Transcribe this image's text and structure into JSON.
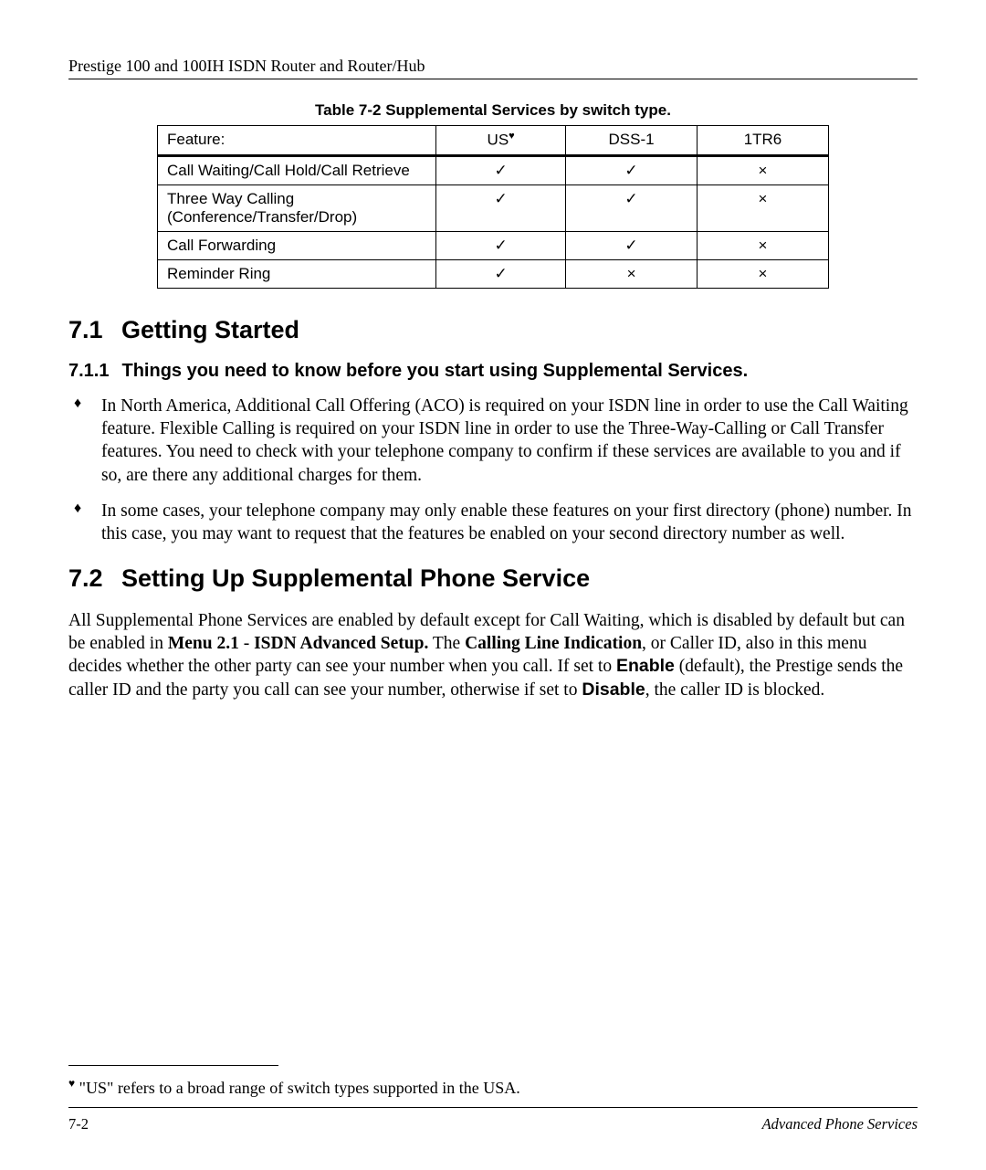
{
  "header": {
    "title": "Prestige 100 and 100IH ISDN Router and Router/Hub"
  },
  "table": {
    "caption": "Table 7-2 Supplemental Services by switch type.",
    "columns": {
      "feature": "Feature:",
      "us": "US",
      "us_marker": "♥",
      "dss1": "DSS-1",
      "tr6": "1TR6"
    },
    "rows": [
      {
        "feature": "Call Waiting/Call Hold/Call Retrieve",
        "us": "✓",
        "dss1": "✓",
        "tr6": "×"
      },
      {
        "feature": "Three Way Calling (Conference/Transfer/Drop)",
        "us": "✓",
        "dss1": "✓",
        "tr6": "×"
      },
      {
        "feature": "Call Forwarding",
        "us": "✓",
        "dss1": "✓",
        "tr6": "×"
      },
      {
        "feature": "Reminder Ring",
        "us": "✓",
        "dss1": "×",
        "tr6": "×"
      }
    ]
  },
  "section71": {
    "num": "7.1",
    "title": "Getting Started"
  },
  "section711": {
    "num": "7.1.1",
    "title": "Things you need to know before you start using Supplemental Services."
  },
  "bullets": [
    "In North America, Additional Call Offering (ACO) is required on your ISDN line in order to use the Call Waiting feature. Flexible Calling is required on your ISDN line in order to use the Three-Way-Calling or Call Transfer features. You need to check with your telephone company to confirm if these services are available to you and if so, are there any additional charges for them.",
    "In some cases, your telephone company may only enable these features on your first directory (phone) number. In this case, you may want to request that the features be enabled on your second directory number as well."
  ],
  "section72": {
    "num": "7.2",
    "title": "Setting Up Supplemental Phone Service"
  },
  "body72": {
    "pre": "All Supplemental Phone Services are enabled by default except for Call Waiting, which is disabled by default but can be enabled in ",
    "menu": "Menu 2.1",
    "dash": " - ",
    "isdn": "ISDN Advanced Setup.",
    "the": " The ",
    "cli": "Calling Line Indication",
    "mid": ", or Caller ID, also in this menu decides whether the other party can see your number when you call. If set to ",
    "enable": "Enable",
    "default": " (default), the Prestige sends the caller ID and the party you call can see your number, otherwise if set to ",
    "disable": "Disable",
    "end": ", the caller ID is blocked."
  },
  "footnote": {
    "marker": "♥",
    "text": " \"US\" refers to a broad range of switch types supported in the USA."
  },
  "footer": {
    "page": "7-2",
    "section": "Advanced Phone Services"
  }
}
